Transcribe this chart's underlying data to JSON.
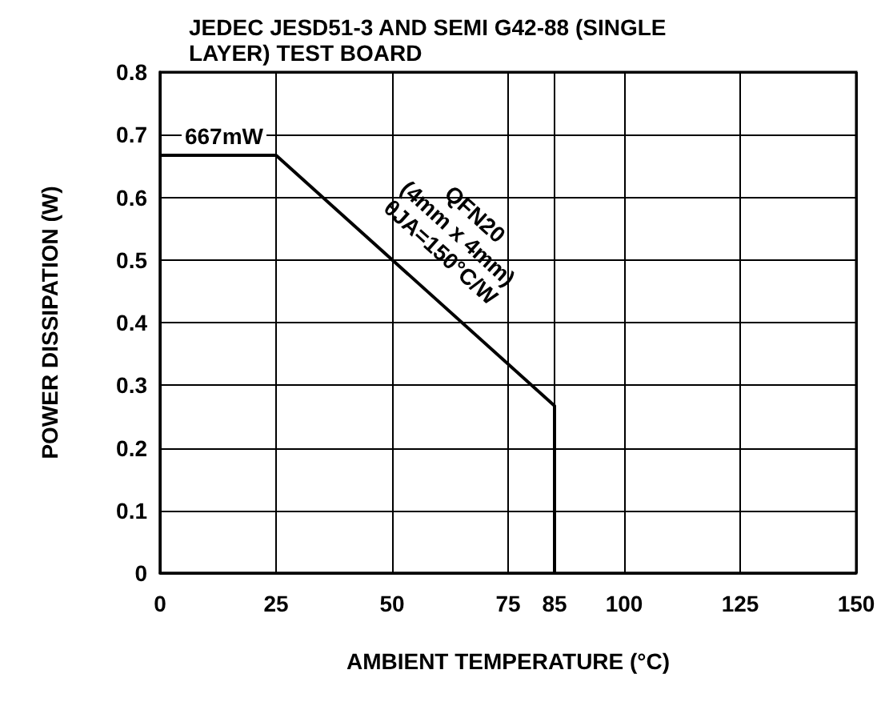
{
  "chart_data": {
    "type": "line",
    "title": "JEDEC JESD51-3 AND SEMI G42-88 (SINGLE LAYER) TEST BOARD",
    "xlabel": "AMBIENT TEMPERATURE (°C)",
    "ylabel": "POWER DISSIPATION (W)",
    "x": [
      0,
      25,
      85,
      85
    ],
    "series": [
      {
        "color": "#000000",
        "values": [
          0.667,
          0.667,
          0.267,
          0
        ]
      }
    ],
    "xlim": [
      0,
      150
    ],
    "xticks": [
      0,
      25,
      50,
      75,
      85,
      100,
      125,
      150
    ],
    "ylim": [
      0,
      0.8
    ],
    "yticks": [
      0,
      0.1,
      0.2,
      0.3,
      0.4,
      0.5,
      0.6,
      0.7,
      0.8
    ],
    "grid": true,
    "marker": "none",
    "line_style": "solid",
    "annotations": [
      {
        "text": "667mW",
        "x": 25,
        "y": 0.667
      },
      {
        "text": "QFN20\n(4mm x 4mm)\nθJA=150°C/W",
        "x": 55,
        "y": 0.467
      }
    ]
  }
}
